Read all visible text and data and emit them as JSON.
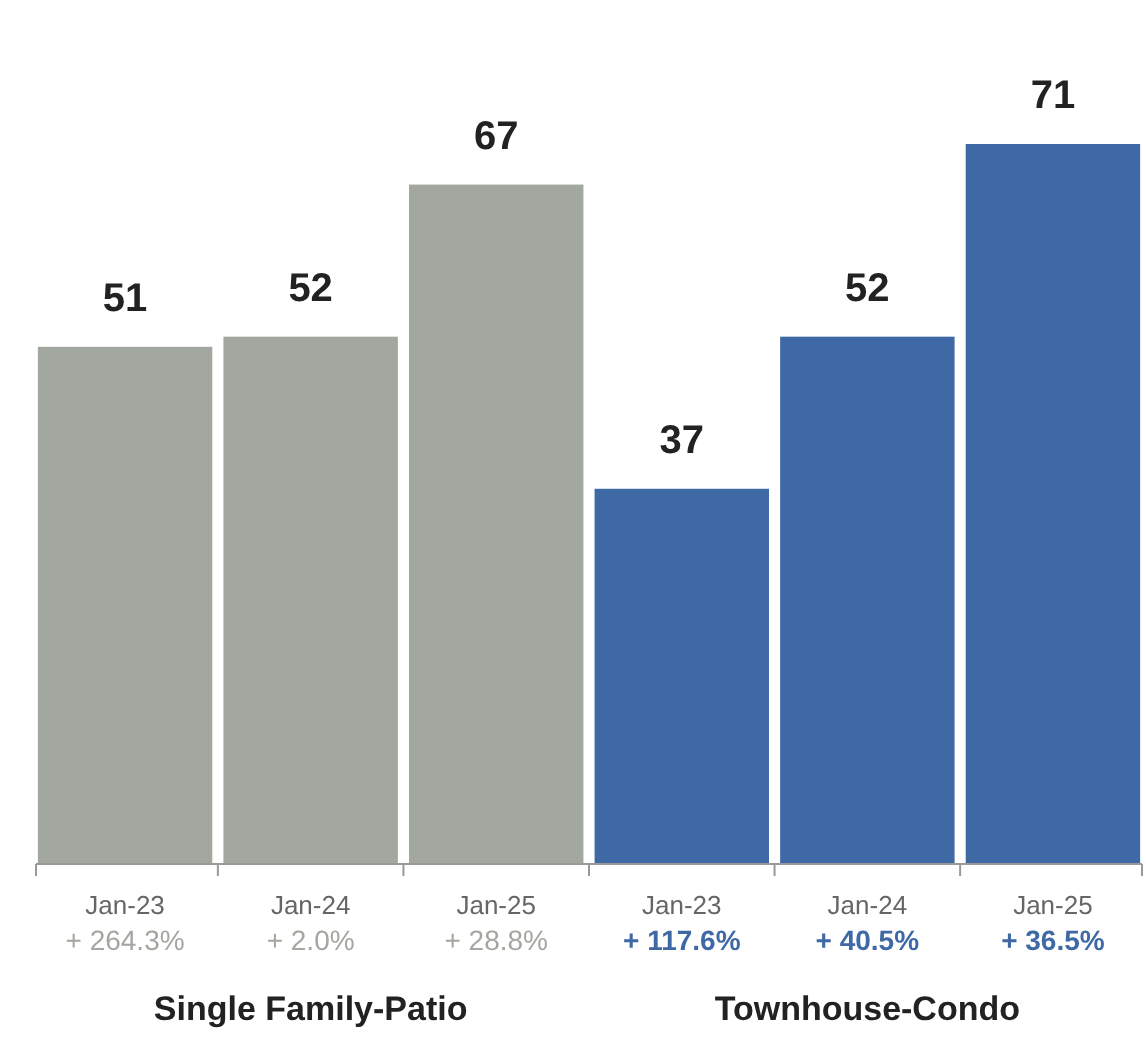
{
  "chart_data": {
    "type": "bar",
    "categories": [
      "Jan-23\n+ 264.3%",
      "Jan-24\n+ 2.0%",
      "Jan-25\n+ 28.8%",
      "Jan-23\n+ 117.6%",
      "Jan-24\n+ 40.5%",
      "Jan-25\n+ 36.5%"
    ],
    "series": [
      {
        "color": "#a2a79f",
        "values": [
          51,
          52,
          67,
          null,
          null,
          null
        ]
      },
      {
        "color": "#3e69a5",
        "values": [
          null,
          null,
          null,
          37,
          52,
          71
        ]
      }
    ],
    "annotations": [
      "Single Family-Patio",
      "Townhouse-Condo"
    ],
    "data_labels": true
  }
}
